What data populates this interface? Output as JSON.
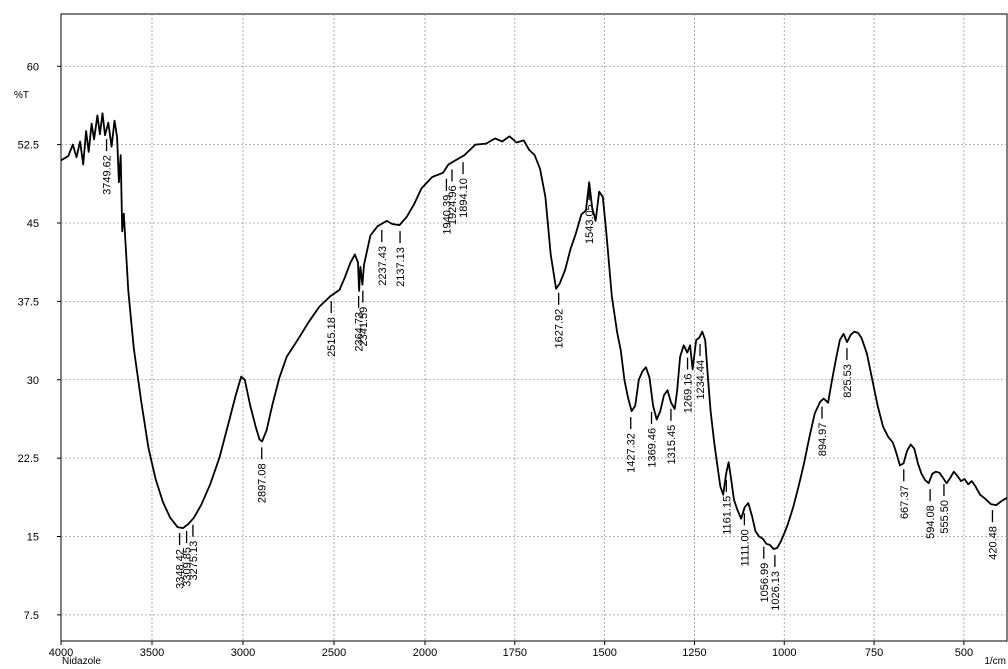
{
  "chart_data": {
    "type": "line",
    "sample_name": "Nidazole",
    "y_unit": "%T",
    "x_unit": "1/cm",
    "xlim": [
      4000,
      380
    ],
    "ylim": [
      5,
      65
    ],
    "x_ticks": [
      4000,
      3500,
      3000,
      2500,
      2000,
      1750,
      1500,
      1250,
      1000,
      750,
      500
    ],
    "y_ticks": [
      7.5,
      15,
      22.5,
      30,
      37.5,
      45,
      52.5,
      60
    ],
    "grid": true,
    "series": [
      {
        "points": [
          [
            4000,
            51.0
          ],
          [
            3960,
            51.4
          ],
          [
            3935,
            52.5
          ],
          [
            3915,
            51.3
          ],
          [
            3895,
            52.8
          ],
          [
            3878,
            50.6
          ],
          [
            3862,
            53.8
          ],
          [
            3848,
            51.8
          ],
          [
            3832,
            54.5
          ],
          [
            3818,
            53.0
          ],
          [
            3800,
            55.3
          ],
          [
            3786,
            53.5
          ],
          [
            3772,
            55.5
          ],
          [
            3758,
            53.4
          ],
          [
            3740,
            54.6
          ],
          [
            3722,
            52.3
          ],
          [
            3706,
            54.8
          ],
          [
            3692,
            53.2
          ],
          [
            3682,
            48.9
          ],
          [
            3672,
            51.5
          ],
          [
            3664,
            44.2
          ],
          [
            3655,
            45.9
          ],
          [
            3630,
            38.5
          ],
          [
            3600,
            33.0
          ],
          [
            3560,
            28.0
          ],
          [
            3520,
            23.5
          ],
          [
            3480,
            20.5
          ],
          [
            3440,
            18.3
          ],
          [
            3400,
            16.8
          ],
          [
            3360,
            15.9
          ],
          [
            3330,
            15.8
          ],
          [
            3300,
            16.2
          ],
          [
            3270,
            16.8
          ],
          [
            3230,
            18.0
          ],
          [
            3180,
            20.0
          ],
          [
            3130,
            22.5
          ],
          [
            3080,
            25.8
          ],
          [
            3040,
            28.5
          ],
          [
            3010,
            30.3
          ],
          [
            2990,
            30.0
          ],
          [
            2960,
            27.5
          ],
          [
            2930,
            25.5
          ],
          [
            2910,
            24.3
          ],
          [
            2895,
            24.1
          ],
          [
            2870,
            25.2
          ],
          [
            2840,
            27.5
          ],
          [
            2800,
            30.2
          ],
          [
            2760,
            32.2
          ],
          [
            2700,
            33.8
          ],
          [
            2640,
            35.5
          ],
          [
            2580,
            37.0
          ],
          [
            2520,
            38.0
          ],
          [
            2470,
            38.6
          ],
          [
            2440,
            39.8
          ],
          [
            2410,
            41.2
          ],
          [
            2385,
            42.0
          ],
          [
            2368,
            41.2
          ],
          [
            2362,
            38.5
          ],
          [
            2355,
            40.8
          ],
          [
            2344,
            39.1
          ],
          [
            2335,
            41.0
          ],
          [
            2300,
            43.8
          ],
          [
            2260,
            44.7
          ],
          [
            2210,
            45.2
          ],
          [
            2180,
            44.9
          ],
          [
            2140,
            44.8
          ],
          [
            2100,
            45.6
          ],
          [
            2060,
            46.8
          ],
          [
            2020,
            48.3
          ],
          [
            1980,
            49.4
          ],
          [
            1950,
            49.8
          ],
          [
            1935,
            50.6
          ],
          [
            1915,
            51.0
          ],
          [
            1890,
            51.5
          ],
          [
            1860,
            52.5
          ],
          [
            1830,
            52.6
          ],
          [
            1805,
            53.1
          ],
          [
            1785,
            52.8
          ],
          [
            1765,
            53.3
          ],
          [
            1745,
            52.7
          ],
          [
            1725,
            52.9
          ],
          [
            1710,
            52.0
          ],
          [
            1695,
            51.5
          ],
          [
            1680,
            50.2
          ],
          [
            1665,
            47.5
          ],
          [
            1650,
            42.0
          ],
          [
            1635,
            38.7
          ],
          [
            1625,
            39.2
          ],
          [
            1610,
            40.5
          ],
          [
            1595,
            42.5
          ],
          [
            1580,
            44.0
          ],
          [
            1565,
            45.8
          ],
          [
            1552,
            46.2
          ],
          [
            1543,
            48.9
          ],
          [
            1535,
            46.5
          ],
          [
            1525,
            45.2
          ],
          [
            1515,
            48.0
          ],
          [
            1505,
            47.5
          ],
          [
            1495,
            44.0
          ],
          [
            1480,
            38.0
          ],
          [
            1465,
            34.5
          ],
          [
            1455,
            32.8
          ],
          [
            1445,
            30.0
          ],
          [
            1435,
            28.3
          ],
          [
            1425,
            27.0
          ],
          [
            1415,
            27.5
          ],
          [
            1405,
            30.0
          ],
          [
            1395,
            30.8
          ],
          [
            1385,
            31.2
          ],
          [
            1375,
            30.2
          ],
          [
            1365,
            27.5
          ],
          [
            1355,
            26.2
          ],
          [
            1345,
            27.0
          ],
          [
            1335,
            28.5
          ],
          [
            1325,
            29.0
          ],
          [
            1315,
            27.8
          ],
          [
            1305,
            27.2
          ],
          [
            1298,
            29.0
          ],
          [
            1290,
            32.2
          ],
          [
            1280,
            33.3
          ],
          [
            1270,
            32.6
          ],
          [
            1262,
            33.3
          ],
          [
            1255,
            31.0
          ],
          [
            1245,
            33.8
          ],
          [
            1237,
            34.0
          ],
          [
            1228,
            34.6
          ],
          [
            1220,
            33.8
          ],
          [
            1212,
            30.0
          ],
          [
            1205,
            27.0
          ],
          [
            1195,
            24.0
          ],
          [
            1185,
            21.5
          ],
          [
            1178,
            19.8
          ],
          [
            1170,
            19.0
          ],
          [
            1162,
            21.0
          ],
          [
            1155,
            22.1
          ],
          [
            1148,
            20.5
          ],
          [
            1140,
            18.5
          ],
          [
            1130,
            17.5
          ],
          [
            1120,
            16.7
          ],
          [
            1110,
            17.8
          ],
          [
            1100,
            18.2
          ],
          [
            1090,
            17.0
          ],
          [
            1080,
            15.5
          ],
          [
            1070,
            15.0
          ],
          [
            1060,
            14.8
          ],
          [
            1050,
            14.3
          ],
          [
            1040,
            14.2
          ],
          [
            1030,
            13.8
          ],
          [
            1020,
            13.9
          ],
          [
            1010,
            14.5
          ],
          [
            1000,
            15.3
          ],
          [
            990,
            16.2
          ],
          [
            975,
            17.8
          ],
          [
            960,
            19.8
          ],
          [
            945,
            22.0
          ],
          [
            930,
            24.5
          ],
          [
            915,
            26.8
          ],
          [
            900,
            27.9
          ],
          [
            890,
            28.2
          ],
          [
            878,
            27.8
          ],
          [
            868,
            29.8
          ],
          [
            855,
            32.2
          ],
          [
            845,
            33.8
          ],
          [
            835,
            34.4
          ],
          [
            825,
            33.6
          ],
          [
            815,
            34.3
          ],
          [
            805,
            34.6
          ],
          [
            795,
            34.5
          ],
          [
            785,
            34.0
          ],
          [
            770,
            32.5
          ],
          [
            755,
            30.0
          ],
          [
            740,
            27.5
          ],
          [
            725,
            25.5
          ],
          [
            710,
            24.5
          ],
          [
            698,
            24.0
          ],
          [
            688,
            23.0
          ],
          [
            678,
            21.8
          ],
          [
            668,
            22.0
          ],
          [
            658,
            23.2
          ],
          [
            648,
            23.8
          ],
          [
            638,
            23.4
          ],
          [
            628,
            22.0
          ],
          [
            618,
            21.0
          ],
          [
            608,
            20.4
          ],
          [
            598,
            20.1
          ],
          [
            588,
            21.0
          ],
          [
            578,
            21.2
          ],
          [
            568,
            21.1
          ],
          [
            558,
            20.6
          ],
          [
            548,
            20.1
          ],
          [
            538,
            20.6
          ],
          [
            528,
            21.2
          ],
          [
            518,
            20.8
          ],
          [
            508,
            20.3
          ],
          [
            498,
            20.5
          ],
          [
            488,
            20.0
          ],
          [
            478,
            20.3
          ],
          [
            468,
            19.8
          ],
          [
            455,
            19.0
          ],
          [
            440,
            18.6
          ],
          [
            425,
            18.1
          ],
          [
            410,
            18.0
          ],
          [
            395,
            18.4
          ],
          [
            380,
            18.7
          ]
        ]
      }
    ],
    "peaks": [
      {
        "label": "3749.62",
        "x": 3749.62,
        "y": 53.6
      },
      {
        "label": "3348.42",
        "x": 3348.42,
        "y": 15.9
      },
      {
        "label": "3309.85",
        "x": 3309.85,
        "y": 16.1
      },
      {
        "label": "3275.13",
        "x": 3275.13,
        "y": 16.7
      },
      {
        "label": "2897.08",
        "x": 2897.08,
        "y": 24.1
      },
      {
        "label": "2515.18",
        "x": 2515.18,
        "y": 38.1
      },
      {
        "label": "2364.73",
        "x": 2364.73,
        "y": 38.6
      },
      {
        "label": "2341.59",
        "x": 2341.59,
        "y": 39.1
      },
      {
        "label": "2237.43",
        "x": 2237.43,
        "y": 44.9
      },
      {
        "label": "2137.13",
        "x": 2137.13,
        "y": 44.8
      },
      {
        "label": "1940.39",
        "x": 1940.39,
        "y": 49.8
      },
      {
        "label": "1924.96",
        "x": 1924.96,
        "y": 50.7
      },
      {
        "label": "1894.10",
        "x": 1894.1,
        "y": 51.4
      },
      {
        "label": "1627.92",
        "x": 1627.92,
        "y": 38.9
      },
      {
        "label": "1543.05",
        "x": 1543.05,
        "y": 48.9
      },
      {
        "label": "1427.32",
        "x": 1427.32,
        "y": 27.0
      },
      {
        "label": "1369.46",
        "x": 1369.46,
        "y": 27.5
      },
      {
        "label": "1315.45",
        "x": 1315.45,
        "y": 27.8
      },
      {
        "label": "1269.16",
        "x": 1269.16,
        "y": 32.7
      },
      {
        "label": "1234.44",
        "x": 1234.44,
        "y": 34.0
      },
      {
        "label": "1161.15",
        "x": 1161.15,
        "y": 21.0
      },
      {
        "label": "1111.00",
        "x": 1111.0,
        "y": 17.8
      },
      {
        "label": "1056.99",
        "x": 1056.99,
        "y": 14.6
      },
      {
        "label": "1026.13",
        "x": 1026.13,
        "y": 13.8
      },
      {
        "label": "894.97",
        "x": 894.97,
        "y": 28.0
      },
      {
        "label": "825.53",
        "x": 825.53,
        "y": 33.6
      },
      {
        "label": "667.37",
        "x": 667.37,
        "y": 22.0
      },
      {
        "label": "594.08",
        "x": 594.08,
        "y": 20.1
      },
      {
        "label": "555.50",
        "x": 555.5,
        "y": 20.6
      },
      {
        "label": "420.48",
        "x": 420.48,
        "y": 18.1
      }
    ]
  }
}
